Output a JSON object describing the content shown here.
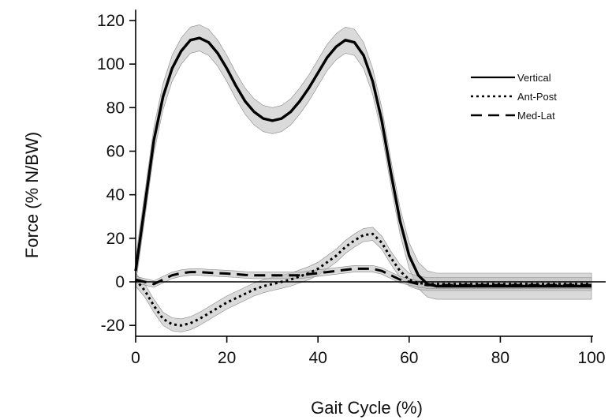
{
  "chart_data": {
    "type": "line",
    "xlabel": "Gait Cycle (%)",
    "ylabel": "Force (% N/BW)",
    "xlim": [
      0,
      100
    ],
    "ylim": [
      -25,
      125
    ],
    "x_ticks": [
      0,
      20,
      40,
      60,
      80,
      100
    ],
    "y_ticks": [
      -20,
      0,
      20,
      40,
      60,
      80,
      100,
      120
    ],
    "x_tick_labels": [
      "0",
      "20",
      "40",
      "60",
      "80",
      "100"
    ],
    "y_tick_labels": [
      "-20",
      "0",
      "20",
      "40",
      "60",
      "80",
      "100",
      "120"
    ],
    "legend_position": "top-right",
    "grid": false,
    "series": [
      {
        "name": "Vertical",
        "style": "solid",
        "color": "#000000",
        "band": 6,
        "x": [
          0,
          2,
          4,
          6,
          8,
          10,
          12,
          14,
          16,
          18,
          20,
          22,
          24,
          26,
          28,
          30,
          32,
          34,
          36,
          38,
          40,
          42,
          44,
          46,
          48,
          50,
          52,
          54,
          56,
          58,
          60,
          62,
          64,
          66,
          70,
          80,
          90,
          100
        ],
        "y": [
          5,
          35,
          65,
          85,
          98,
          106,
          111,
          112,
          110,
          105,
          98,
          90,
          83,
          78,
          75,
          74,
          75,
          78,
          83,
          89,
          96,
          103,
          108,
          111,
          110,
          104,
          92,
          74,
          50,
          28,
          12,
          3,
          -1,
          -2,
          -2,
          -2,
          -2,
          -2
        ]
      },
      {
        "name": "Ant-Post",
        "style": "dotted",
        "color": "#000000",
        "band": 3,
        "x": [
          0,
          2,
          4,
          6,
          8,
          10,
          12,
          14,
          16,
          18,
          20,
          22,
          24,
          26,
          28,
          30,
          32,
          34,
          36,
          38,
          40,
          42,
          44,
          46,
          48,
          50,
          52,
          54,
          56,
          58,
          60,
          62,
          64,
          66,
          70,
          80,
          90,
          100
        ],
        "y": [
          1,
          -4,
          -11,
          -17,
          -19.5,
          -20,
          -19,
          -17,
          -14.5,
          -12,
          -9.5,
          -7.5,
          -5.5,
          -3.5,
          -2,
          -1,
          0,
          1,
          2.5,
          4,
          6,
          9,
          12,
          16,
          19,
          21.5,
          22,
          18,
          11,
          5,
          1,
          -0.5,
          -1,
          -1,
          -1,
          -1,
          -1,
          -1
        ]
      },
      {
        "name": "Med-Lat",
        "style": "dashed",
        "color": "#000000",
        "band": 1.5,
        "x": [
          0,
          2,
          4,
          6,
          8,
          10,
          12,
          14,
          16,
          18,
          20,
          22,
          24,
          26,
          28,
          30,
          32,
          34,
          36,
          38,
          40,
          42,
          44,
          46,
          48,
          50,
          52,
          54,
          56,
          58,
          60,
          62,
          64,
          66,
          70,
          80,
          90,
          100
        ],
        "y": [
          1,
          0,
          -1,
          1,
          3,
          4,
          4.5,
          4.5,
          4.2,
          4,
          3.8,
          3.5,
          3.2,
          3,
          3,
          3,
          3,
          3,
          3,
          3.5,
          4,
          4.5,
          5,
          5.5,
          6,
          6,
          6,
          5,
          3,
          1,
          0,
          -1,
          -1.5,
          -1.5,
          -1.5,
          -1.5,
          -1.5,
          -1.5
        ]
      }
    ]
  }
}
